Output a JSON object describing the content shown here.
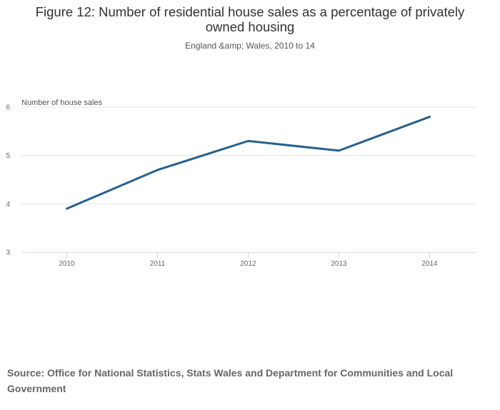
{
  "chart_data": {
    "type": "line",
    "title": "Figure 12: Number of residential house sales as a percentage of privately owned housing",
    "subtitle": "England &amp; Wales, 2010 to 14",
    "xlabel": "",
    "ylabel": "Number of house sales",
    "categories": [
      "2010",
      "2011",
      "2012",
      "2013",
      "2014"
    ],
    "series": [
      {
        "name": "Number of house sales",
        "values": [
          3.9,
          4.7,
          5.3,
          5.1,
          5.8
        ],
        "color": "#27608f"
      }
    ],
    "ylim": [
      3,
      6
    ],
    "yticks": [
      3,
      4,
      5,
      6
    ],
    "grid": true,
    "legend": "none"
  },
  "source": "Source: Office for National Statistics, Stats Wales and Department for Communities and Local Government",
  "colors": {
    "line": "#27608f",
    "grid": "#e6e6e6",
    "axis": "#ccd6eb"
  }
}
